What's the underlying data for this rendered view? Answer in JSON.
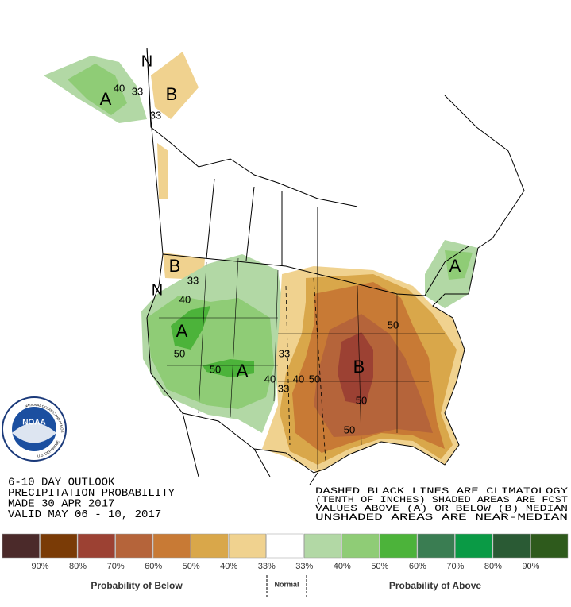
{
  "map_labels": [
    "N",
    "A",
    "40",
    "33",
    "B",
    "33",
    "B",
    "33",
    "N",
    "40",
    "A",
    "50",
    "50",
    "A",
    "33",
    "40",
    "40",
    "50",
    "33",
    "B",
    "50",
    "50",
    "50",
    "A"
  ],
  "logo": {
    "name": "NOAA",
    "agency": "NATIONAL OCEANIC AND ATMOSPHERIC ADMINISTRATION",
    "department": "U.S. DEPARTMENT OF COMMERCE"
  },
  "info_left": [
    "6-10 DAY OUTLOOK",
    "PRECIPITATION PROBABILITY",
    "MADE  30 APR 2017",
    "VALID  MAY 06 - 10, 2017"
  ],
  "info_right": [
    "DASHED BLACK LINES ARE CLIMATOLOGY",
    "(TENTH OF INCHES) SHADED AREAS ARE FCST",
    "VALUES ABOVE (A) OR BELOW (B) MEDIAN",
    "UNSHADED AREAS ARE NEAR-MEDIAN"
  ],
  "legend": {
    "colors": [
      "#4b2a2a",
      "#7a3b06",
      "#9c4133",
      "#b5643a",
      "#c87a35",
      "#d9a74a",
      "#f0d28f",
      "#ffffff",
      "#b2d8a5",
      "#8fcc76",
      "#4cb33a",
      "#3a7d52",
      "#0a9a45",
      "#2a5a34",
      "#2e5a1c"
    ],
    "labels": [
      "90%",
      "80%",
      "70%",
      "60%",
      "50%",
      "40%",
      "33%",
      "33%",
      "40%",
      "50%",
      "60%",
      "70%",
      "80%",
      "90%"
    ],
    "below": "Probability of Below",
    "normal": "Normal",
    "above": "Probability of Above"
  }
}
